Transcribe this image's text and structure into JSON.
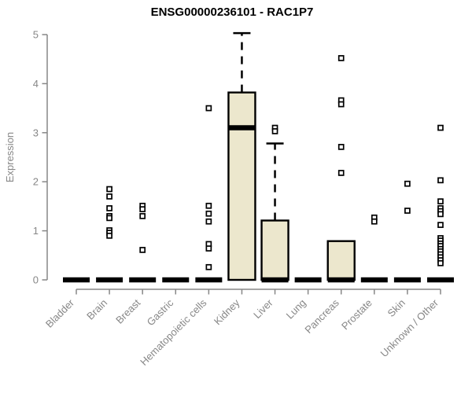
{
  "chart_data": {
    "type": "boxplot",
    "title": "ENSG00000236101 - RAC1P7",
    "ylabel": "Expression",
    "xlabel": "",
    "ylim": [
      0,
      5
    ],
    "yticks": [
      0,
      1,
      2,
      3,
      4,
      5
    ],
    "grid": false,
    "legend_position": "none",
    "colors": {
      "box_fill": "#ECE7CD",
      "box_border": "#000000",
      "median": "#000000",
      "whisker": "#000000",
      "outlier_stroke": "#000000",
      "outlier_fill": "#ffffff",
      "axis": "#878787",
      "tick_label": "#878787",
      "title": "#000000",
      "background": "#ffffff"
    },
    "categories": [
      "Bladder",
      "Brain",
      "Breast",
      "Gastric",
      "Hematopoietic cells",
      "Kidney",
      "Liver",
      "Lung",
      "Pancreas",
      "Prostate",
      "Skin",
      "Unknown / Other"
    ],
    "series": [
      {
        "category": "Bladder",
        "median": 0,
        "q1": 0,
        "q3": 0,
        "whisker_high": null,
        "outliers": []
      },
      {
        "category": "Brain",
        "median": 0,
        "q1": 0,
        "q3": 0,
        "whisker_high": null,
        "outliers": [
          1.85,
          1.7,
          1.46,
          1.3,
          1.26,
          1.01,
          0.96,
          0.9
        ]
      },
      {
        "category": "Breast",
        "median": 0,
        "q1": 0,
        "q3": 0,
        "whisker_high": null,
        "outliers": [
          1.51,
          1.44,
          1.3,
          0.61
        ]
      },
      {
        "category": "Gastric",
        "median": 0,
        "q1": 0,
        "q3": 0,
        "whisker_high": null,
        "outliers": []
      },
      {
        "category": "Hematopoietic cells",
        "median": 0,
        "q1": 0,
        "q3": 0,
        "whisker_high": null,
        "outliers": [
          3.5,
          1.51,
          1.35,
          1.19,
          0.73,
          0.64,
          0.26
        ]
      },
      {
        "category": "Kidney",
        "median": 3.1,
        "q1": 0,
        "q3": 3.82,
        "whisker_high": 5.03,
        "outliers": []
      },
      {
        "category": "Liver",
        "median": 0,
        "q1": 0,
        "q3": 1.21,
        "whisker_high": 2.78,
        "outliers": [
          3.1,
          3.03
        ]
      },
      {
        "category": "Lung",
        "median": 0,
        "q1": 0,
        "q3": 0,
        "whisker_high": null,
        "outliers": []
      },
      {
        "category": "Pancreas",
        "median": 0,
        "q1": 0,
        "q3": 0.79,
        "whisker_high": null,
        "outliers": [
          4.52,
          3.66,
          3.58,
          2.71,
          2.18
        ]
      },
      {
        "category": "Prostate",
        "median": 0,
        "q1": 0,
        "q3": 0,
        "whisker_high": null,
        "outliers": [
          1.27,
          1.19
        ]
      },
      {
        "category": "Skin",
        "median": 0,
        "q1": 0,
        "q3": 0,
        "whisker_high": null,
        "outliers": [
          1.96,
          1.41
        ]
      },
      {
        "category": "Unknown / Other",
        "median": 0,
        "q1": 0,
        "q3": 0,
        "whisker_high": null,
        "outliers": [
          3.1,
          2.03,
          1.6,
          1.46,
          1.4,
          1.34,
          1.12,
          0.85,
          0.8,
          0.74,
          0.69,
          0.63,
          0.58,
          0.52,
          0.46,
          0.4,
          0.34
        ]
      }
    ]
  }
}
